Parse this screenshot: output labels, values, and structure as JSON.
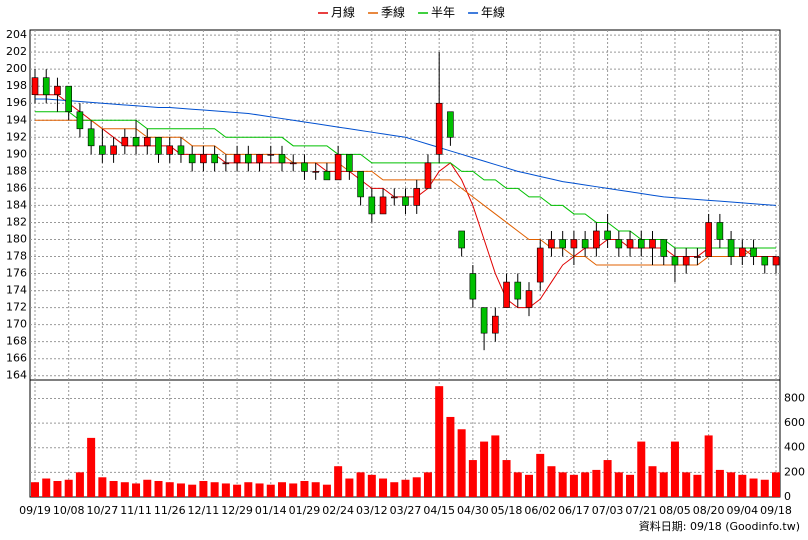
{
  "chart_data": {
    "type": "candlestick",
    "categories": [
      "09/19",
      null,
      null,
      "10/08",
      null,
      null,
      "10/27",
      null,
      null,
      "11/11",
      null,
      null,
      "11/26",
      null,
      null,
      "12/11",
      null,
      null,
      "12/29",
      null,
      null,
      "01/14",
      null,
      null,
      "01/29",
      null,
      null,
      "02/24",
      null,
      null,
      "03/12",
      null,
      null,
      "03/27",
      null,
      null,
      "04/15",
      null,
      null,
      "04/30",
      null,
      null,
      "05/18",
      null,
      null,
      "06/02",
      null,
      null,
      "06/17",
      null,
      null,
      "07/03",
      null,
      null,
      "07/21",
      null,
      null,
      "08/05",
      null,
      null,
      "08/20",
      null,
      null,
      "09/04",
      null,
      null,
      "09/18"
    ],
    "open": [
      197,
      199,
      197,
      198,
      195,
      193,
      191,
      190,
      191,
      192,
      191,
      192,
      190,
      191,
      190,
      189,
      190,
      189,
      189,
      190,
      189,
      190,
      190,
      189,
      189,
      188,
      188,
      187,
      190,
      188,
      185,
      183,
      185,
      185,
      184,
      186,
      190,
      195,
      181,
      176,
      172,
      169,
      172,
      175,
      172,
      175,
      179,
      180,
      179,
      180,
      179,
      181,
      180,
      179,
      180,
      179,
      180,
      178,
      177,
      178,
      178,
      182,
      180,
      178,
      179,
      178,
      177
    ],
    "high": [
      200,
      200,
      199,
      198,
      196,
      194,
      193,
      192,
      193,
      194,
      193,
      192,
      192,
      192,
      191,
      191,
      191,
      190,
      191,
      191,
      190,
      191,
      191,
      190,
      190,
      189,
      189,
      191,
      190,
      188,
      186,
      186,
      186,
      186,
      187,
      190,
      202,
      195,
      181,
      177,
      172,
      172,
      176,
      176,
      175,
      180,
      181,
      181,
      181,
      181,
      182,
      183,
      181,
      181,
      181,
      181,
      180,
      179,
      179,
      179,
      183,
      183,
      181,
      180,
      180,
      178,
      178
    ],
    "low": [
      196,
      196,
      195,
      194,
      192,
      190,
      189,
      189,
      190,
      190,
      190,
      189,
      189,
      189,
      188,
      188,
      188,
      188,
      188,
      188,
      188,
      189,
      188,
      188,
      187,
      187,
      187,
      187,
      187,
      184,
      182,
      183,
      184,
      183,
      183,
      186,
      189,
      191,
      178,
      172,
      167,
      168,
      172,
      172,
      171,
      174,
      178,
      178,
      177,
      178,
      178,
      179,
      178,
      178,
      178,
      177,
      177,
      175,
      176,
      177,
      178,
      179,
      177,
      177,
      177,
      176,
      176
    ],
    "close": [
      199,
      197,
      198,
      195,
      193,
      191,
      190,
      191,
      192,
      191,
      192,
      190,
      191,
      190,
      189,
      190,
      189,
      189,
      190,
      189,
      190,
      190,
      189,
      189,
      188,
      188,
      187,
      190,
      188,
      185,
      183,
      185,
      185,
      184,
      186,
      189,
      196,
      192,
      179,
      173,
      169,
      171,
      175,
      173,
      174,
      179,
      180,
      179,
      180,
      179,
      181,
      180,
      179,
      180,
      179,
      180,
      178,
      177,
      178,
      178,
      182,
      180,
      178,
      179,
      178,
      177,
      178
    ],
    "volume": [
      120,
      150,
      130,
      140,
      200,
      480,
      160,
      130,
      120,
      110,
      140,
      130,
      120,
      110,
      100,
      130,
      120,
      110,
      100,
      120,
      110,
      100,
      120,
      110,
      130,
      120,
      100,
      250,
      150,
      200,
      180,
      150,
      120,
      140,
      160,
      200,
      900,
      650,
      550,
      300,
      450,
      500,
      300,
      200,
      180,
      350,
      250,
      200,
      180,
      200,
      220,
      300,
      200,
      180,
      450,
      250,
      200,
      450,
      200,
      180,
      500,
      220,
      200,
      180,
      150,
      140,
      200
    ],
    "series": [
      {
        "name": "月線",
        "color": "#e00000",
        "values": [
          197,
          197,
          197,
          196,
          195,
          194,
          193,
          192,
          191,
          191,
          191,
          191,
          191,
          190,
          190,
          190,
          190,
          189,
          189,
          189,
          189,
          189,
          189,
          189,
          189,
          189,
          188,
          188,
          188,
          187,
          186,
          186,
          185,
          185,
          185,
          186,
          188,
          189,
          187,
          184,
          180,
          176,
          173,
          172,
          172,
          173,
          175,
          177,
          178,
          179,
          179,
          180,
          180,
          179,
          179,
          179,
          179,
          178,
          178,
          178,
          179,
          179,
          179,
          179,
          178,
          178,
          178
        ]
      },
      {
        "name": "季線",
        "color": "#e06000",
        "values": [
          194,
          194,
          194,
          194,
          194,
          194,
          193,
          193,
          193,
          193,
          192,
          192,
          192,
          192,
          191,
          191,
          191,
          190,
          190,
          190,
          190,
          190,
          190,
          189,
          189,
          189,
          189,
          189,
          188,
          188,
          188,
          187,
          187,
          187,
          187,
          187,
          187,
          187,
          186,
          185,
          184,
          183,
          182,
          181,
          180,
          180,
          179,
          179,
          178,
          178,
          177,
          177,
          177,
          177,
          177,
          177,
          177,
          177,
          177,
          177,
          178,
          178,
          178,
          178,
          179,
          179,
          179
        ]
      },
      {
        "name": "半年",
        "color": "#00c000",
        "values": [
          195,
          195,
          195,
          195,
          194,
          194,
          194,
          194,
          194,
          194,
          193,
          193,
          193,
          193,
          193,
          193,
          193,
          192,
          192,
          192,
          192,
          192,
          192,
          191,
          191,
          191,
          191,
          190,
          190,
          190,
          189,
          189,
          189,
          189,
          189,
          189,
          189,
          189,
          188,
          188,
          187,
          187,
          186,
          186,
          185,
          185,
          184,
          184,
          183,
          183,
          182,
          182,
          181,
          181,
          180,
          180,
          180,
          179,
          179,
          179,
          179,
          179,
          179,
          179,
          179,
          179,
          179
        ]
      },
      {
        "name": "年線",
        "color": "#0050d0",
        "values": [
          196.5,
          196.5,
          196.4,
          196.3,
          196.2,
          196.1,
          196,
          195.9,
          195.8,
          195.7,
          195.6,
          195.5,
          195.5,
          195.4,
          195.3,
          195.2,
          195.1,
          195,
          194.9,
          194.8,
          194.6,
          194.4,
          194.2,
          194,
          193.8,
          193.6,
          193.4,
          193.2,
          193,
          192.8,
          192.6,
          192.4,
          192.2,
          192,
          191.6,
          191.2,
          190.8,
          190.4,
          190,
          189.6,
          189.2,
          188.8,
          188.4,
          188,
          187.7,
          187.4,
          187.1,
          186.8,
          186.6,
          186.4,
          186.2,
          186,
          185.8,
          185.6,
          185.4,
          185.2,
          185,
          184.9,
          184.8,
          184.7,
          184.6,
          184.5,
          184.4,
          184.3,
          184.2,
          184.1,
          184.0
        ]
      }
    ],
    "up_color": "#ff0000",
    "down_color": "#00c000",
    "volume_color": "#ff0000",
    "ylim": [
      163.5,
      204.6
    ],
    "yticks": [
      164,
      166,
      168,
      170,
      172,
      174,
      176,
      178,
      180,
      182,
      184,
      186,
      188,
      190,
      192,
      194,
      196,
      198,
      200,
      202,
      204
    ],
    "y2lim": [
      0,
      950
    ],
    "y2ticks": [
      0,
      200,
      400,
      600,
      800
    ],
    "grid": true,
    "source": "資料日期: 09/18  (Goodinfo.tw)"
  }
}
